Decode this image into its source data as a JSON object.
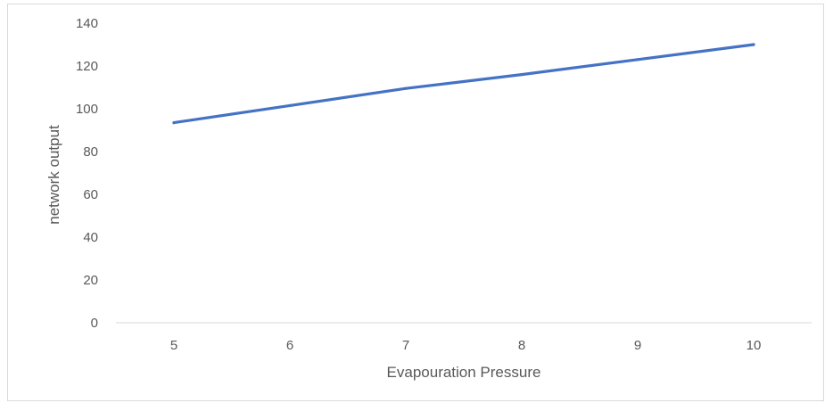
{
  "chart_data": {
    "type": "line",
    "title": "",
    "xlabel": "Evapouration Pressure",
    "ylabel": "network output",
    "categories": [
      "5",
      "6",
      "7",
      "8",
      "9",
      "10"
    ],
    "series": [
      {
        "values": [
          93.5,
          101.5,
          109.5,
          116,
          123,
          130
        ]
      }
    ],
    "ylim": [
      0,
      140
    ],
    "yticks": [
      0,
      20,
      40,
      60,
      80,
      100,
      120,
      140
    ],
    "grid": false,
    "legend": "none",
    "colors": {
      "series": "#4472C4",
      "axis": "#d9d9d9",
      "text": "#595959"
    }
  }
}
